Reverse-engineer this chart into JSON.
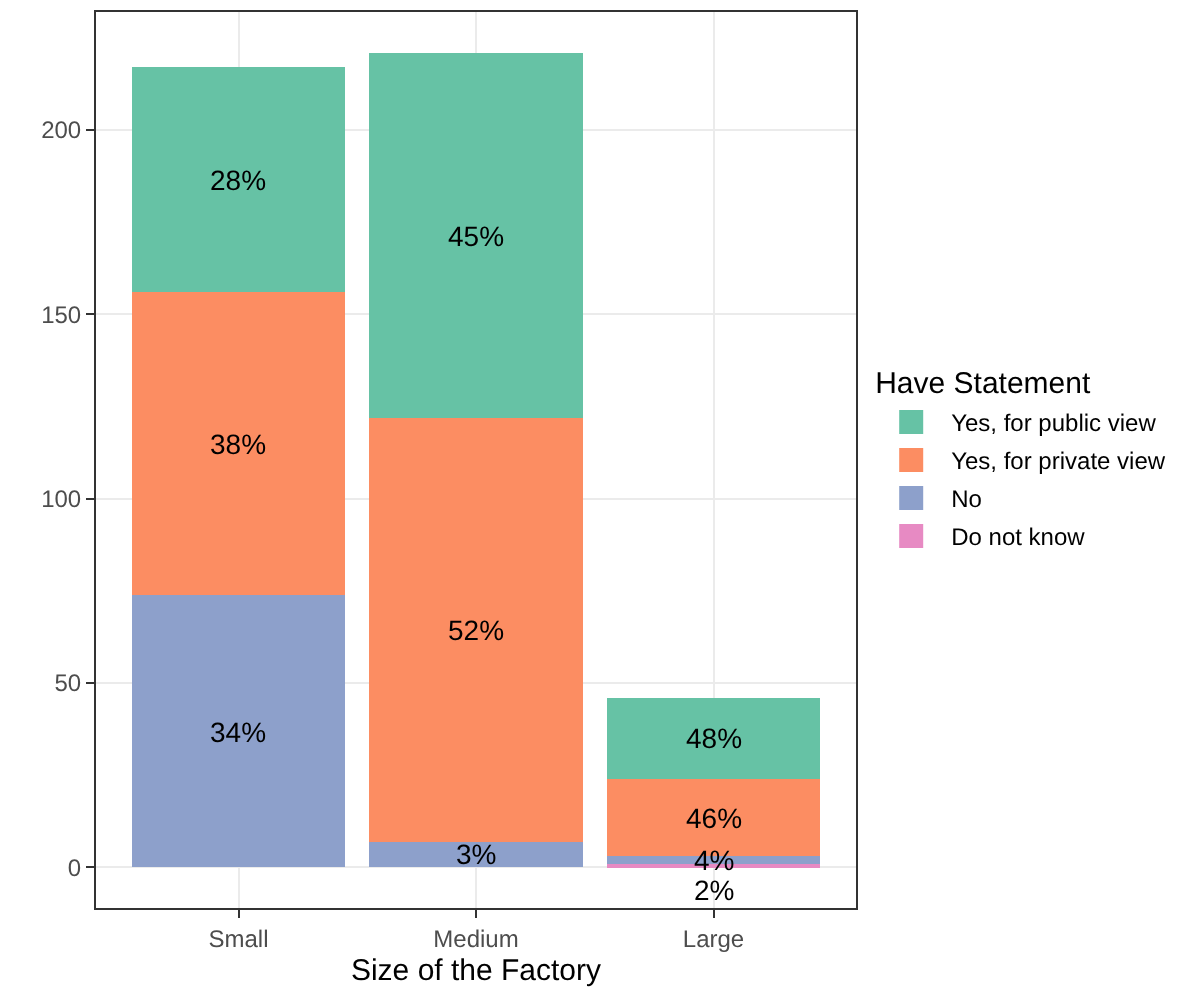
{
  "chart_data": {
    "type": "bar",
    "stacked": true,
    "xlabel": "Size of the Factory",
    "legend_title": "Have Statement",
    "categories": [
      "Small",
      "Medium",
      "Large"
    ],
    "series": [
      {
        "name": "Do not know",
        "color": "#e78ac3",
        "values": [
          0,
          0,
          1
        ]
      },
      {
        "name": "No",
        "color": "#8da0cb",
        "values": [
          74,
          7,
          2
        ]
      },
      {
        "name": "Yes, for private view",
        "color": "#fc8d62",
        "values": [
          82,
          115,
          21
        ]
      },
      {
        "name": "Yes, for public view",
        "color": "#66c2a5",
        "values": [
          61,
          99,
          22
        ]
      }
    ],
    "annotations": [
      "34%",
      "38%",
      "28%",
      "3%",
      "52%",
      "45%",
      "2%",
      "4%",
      "46%",
      "48%"
    ],
    "ylim": [
      -11,
      232
    ],
    "yticks": [
      0,
      50,
      100,
      150,
      200
    ],
    "grid": true,
    "legend": "right"
  }
}
